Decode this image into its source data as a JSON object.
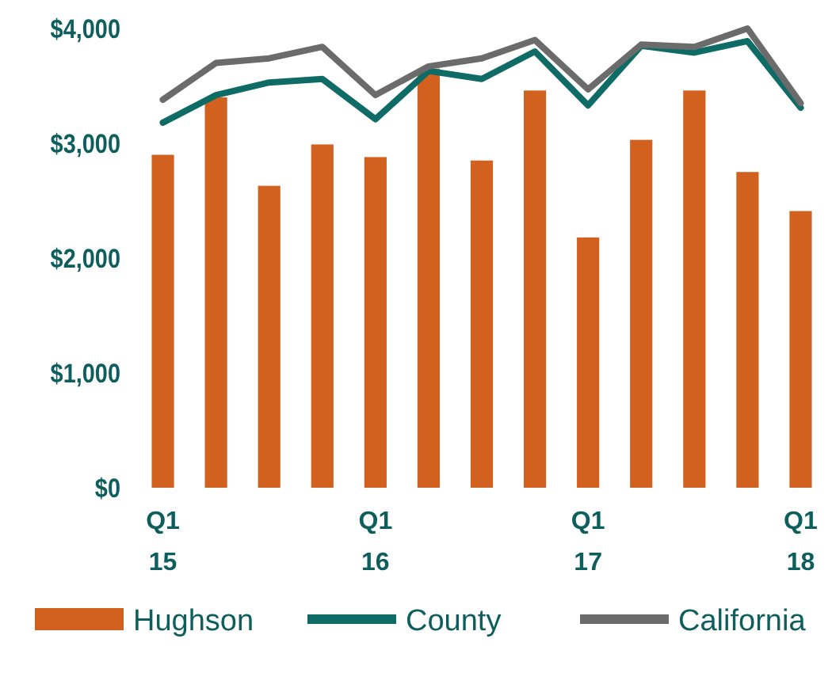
{
  "chart_data": {
    "type": "bar",
    "categories": [
      "Q1\n15",
      null,
      null,
      null,
      "Q1\n16",
      null,
      null,
      null,
      "Q1\n17",
      null,
      null,
      null,
      "Q1\n18"
    ],
    "series": [
      {
        "name": "Hughson",
        "color": "#d2601e",
        "values": [
          2900,
          3400,
          2630,
          2990,
          2880,
          3650,
          2850,
          3460,
          2180,
          3030,
          3460,
          2750,
          2410
        ]
      },
      {
        "name": "County",
        "type": "line",
        "color": "#0f6b66",
        "values": [
          3180,
          3420,
          3530,
          3560,
          3210,
          3630,
          3560,
          3800,
          3330,
          3850,
          3790,
          3890,
          3310
        ]
      },
      {
        "name": "California",
        "type": "line",
        "color": "#6b6b6b",
        "values": [
          3380,
          3700,
          3740,
          3840,
          3420,
          3670,
          3740,
          3900,
          3470,
          3860,
          3840,
          4000,
          3350
        ]
      }
    ],
    "ylim": [
      0,
      4000
    ],
    "yticks": [
      {
        "value": 0,
        "label": "$0"
      },
      {
        "value": 1000,
        "label": "$1,000"
      },
      {
        "value": 2000,
        "label": "$2,000"
      },
      {
        "value": 3000,
        "label": "$3,000"
      },
      {
        "value": 4000,
        "label": "$4,000"
      }
    ],
    "grid": false,
    "legend": "bottom",
    "marker": "none",
    "line_style": "solid"
  }
}
